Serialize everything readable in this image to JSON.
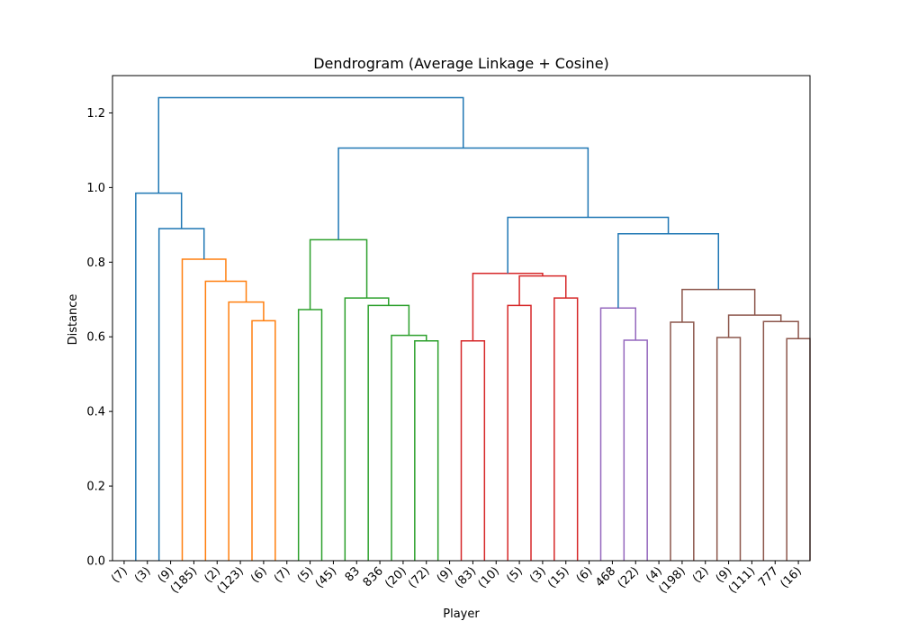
{
  "chart_data": {
    "type": "dendrogram",
    "title": "Dendrogram (Average Linkage + Cosine)",
    "xlabel": "Player",
    "ylabel": "Distance",
    "ylim": [
      0.0,
      1.3
    ],
    "yticks": [
      0.0,
      0.2,
      0.4,
      0.6,
      0.8,
      1.0,
      1.2
    ],
    "ytick_labels": [
      "0.0",
      "0.2",
      "0.4",
      "0.6",
      "0.8",
      "1.0",
      "1.2"
    ],
    "leaf_labels": [
      "(7)",
      "(3)",
      "(9)",
      "(185)",
      "(2)",
      "(123)",
      "(6)",
      "(7)",
      "(5)",
      "(45)",
      "83",
      "836",
      "(20)",
      "(72)",
      "(9)",
      "(83)",
      "(10)",
      "(5)",
      "(3)",
      "(15)",
      "(6)",
      "468",
      "(22)",
      "(4)",
      "(198)",
      "(2)",
      "(9)",
      "(111)",
      "777",
      "(16)"
    ],
    "grid": false,
    "colors": {
      "blue": "#1f77b4",
      "orange": "#ff7f0e",
      "green": "#2ca02c",
      "red": "#d62728",
      "purple": "#9467bd",
      "brown": "#8c564b"
    },
    "links": [
      {
        "x": [
          60,
          60,
          70,
          70
        ],
        "y": [
          0.0,
          0.643,
          0.643,
          0.0
        ],
        "color": "orange"
      },
      {
        "x": [
          50,
          50,
          65,
          65
        ],
        "y": [
          0.0,
          0.693,
          0.693,
          0.643
        ],
        "color": "orange"
      },
      {
        "x": [
          40,
          40,
          57.5,
          57.5
        ],
        "y": [
          0.0,
          0.749,
          0.749,
          0.693
        ],
        "color": "orange"
      },
      {
        "x": [
          30,
          30,
          48.75,
          48.75
        ],
        "y": [
          0.0,
          0.808,
          0.808,
          0.749
        ],
        "color": "orange"
      },
      {
        "x": [
          80,
          80,
          90,
          90
        ],
        "y": [
          0.0,
          0.673,
          0.673,
          0.0
        ],
        "color": "green"
      },
      {
        "x": [
          130,
          130,
          140,
          140
        ],
        "y": [
          0.0,
          0.589,
          0.589,
          0.0
        ],
        "color": "green"
      },
      {
        "x": [
          120,
          120,
          135,
          135
        ],
        "y": [
          0.0,
          0.604,
          0.604,
          0.589
        ],
        "color": "green"
      },
      {
        "x": [
          110,
          110,
          127.5,
          127.5
        ],
        "y": [
          0.0,
          0.684,
          0.684,
          0.604
        ],
        "color": "green"
      },
      {
        "x": [
          100,
          100,
          118.75,
          118.75
        ],
        "y": [
          0.0,
          0.704,
          0.704,
          0.684
        ],
        "color": "green"
      },
      {
        "x": [
          85,
          85,
          109.375,
          109.375
        ],
        "y": [
          0.673,
          0.86,
          0.86,
          0.704
        ],
        "color": "green"
      },
      {
        "x": [
          150,
          150,
          160,
          160
        ],
        "y": [
          0.0,
          0.589,
          0.589,
          0.0
        ],
        "color": "red"
      },
      {
        "x": [
          170,
          170,
          180,
          180
        ],
        "y": [
          0.0,
          0.684,
          0.684,
          0.0
        ],
        "color": "red"
      },
      {
        "x": [
          190,
          190,
          200,
          200
        ],
        "y": [
          0.0,
          0.704,
          0.704,
          0.0
        ],
        "color": "red"
      },
      {
        "x": [
          175,
          175,
          195,
          195
        ],
        "y": [
          0.684,
          0.763,
          0.763,
          0.704
        ],
        "color": "red"
      },
      {
        "x": [
          155,
          155,
          185,
          185
        ],
        "y": [
          0.589,
          0.77,
          0.77,
          0.763
        ],
        "color": "red"
      },
      {
        "x": [
          220,
          220,
          230,
          230
        ],
        "y": [
          0.0,
          0.591,
          0.591,
          0.0
        ],
        "color": "purple"
      },
      {
        "x": [
          210,
          210,
          225,
          225
        ],
        "y": [
          0.0,
          0.677,
          0.677,
          0.591
        ],
        "color": "purple"
      },
      {
        "x": [
          240,
          240,
          250,
          250
        ],
        "y": [
          0.0,
          0.639,
          0.639,
          0.0
        ],
        "color": "brown"
      },
      {
        "x": [
          260,
          260,
          270,
          270
        ],
        "y": [
          0.0,
          0.598,
          0.598,
          0.0
        ],
        "color": "brown"
      },
      {
        "x": [
          290,
          290,
          300,
          300
        ],
        "y": [
          0.0,
          0.595,
          0.595,
          0.0
        ],
        "color": "brown"
      },
      {
        "x": [
          280,
          280,
          295,
          295
        ],
        "y": [
          0.0,
          0.641,
          0.641,
          0.595
        ],
        "color": "brown"
      },
      {
        "x": [
          265,
          265,
          287.5,
          287.5
        ],
        "y": [
          0.598,
          0.658,
          0.658,
          0.641
        ],
        "color": "brown"
      },
      {
        "x": [
          245,
          245,
          276.25,
          276.25
        ],
        "y": [
          0.639,
          0.727,
          0.727,
          0.658
        ],
        "color": "brown"
      },
      {
        "x": [
          217.5,
          217.5,
          260.625,
          260.625
        ],
        "y": [
          0.677,
          0.876,
          0.876,
          0.727
        ],
        "color": "blue"
      },
      {
        "x": [
          170,
          170,
          239.0625,
          239.0625
        ],
        "y": [
          0.77,
          0.92,
          0.92,
          0.876
        ],
        "color": "blue"
      },
      {
        "x": [
          97.1875,
          97.1875,
          204.53125,
          204.53125
        ],
        "y": [
          0.86,
          1.106,
          1.106,
          0.92
        ],
        "color": "blue"
      },
      {
        "x": [
          20,
          20,
          39.375,
          39.375
        ],
        "y": [
          0.0,
          0.89,
          0.89,
          0.808
        ],
        "color": "blue"
      },
      {
        "x": [
          10,
          10,
          29.6875,
          29.6875
        ],
        "y": [
          0.0,
          0.985,
          0.985,
          0.89
        ],
        "color": "blue"
      },
      {
        "x": [
          19.84375,
          19.84375,
          150.859375,
          150.859375
        ],
        "y": [
          0.985,
          1.241,
          1.241,
          1.106
        ],
        "color": "blue"
      }
    ]
  }
}
